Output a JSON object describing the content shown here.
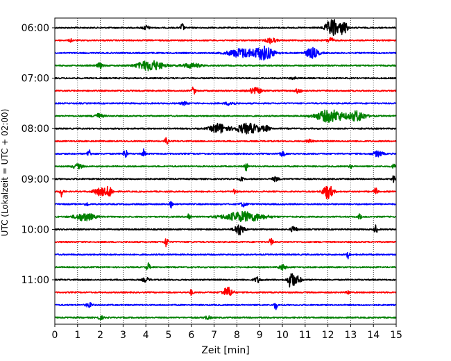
{
  "chart_data": {
    "type": "line",
    "title": "",
    "xlabel": "Zeit  [min]",
    "ylabel": "UTC (Lokalzeit = UTC + 02:00)",
    "xlim": [
      0,
      15
    ],
    "xticks": [
      0,
      1,
      2,
      3,
      4,
      5,
      6,
      7,
      8,
      9,
      10,
      11,
      12,
      13,
      14,
      15
    ],
    "xtick_labels": [
      "0",
      "1",
      "2",
      "3",
      "4",
      "5",
      "6",
      "7",
      "8",
      "9",
      "10",
      "11",
      "12",
      "13",
      "14",
      "15"
    ],
    "ytick_labels": [
      "06:00",
      "07:00",
      "08:00",
      "09:00",
      "10:00",
      "11:00"
    ],
    "grid": "vertical dotted",
    "trace_interval_min": 15,
    "series": [
      {
        "row": 0,
        "color": "#000000",
        "events": [
          [
            4.0,
            0.4,
            0.2
          ],
          [
            5.6,
            0.8,
            0.1
          ],
          [
            12.2,
            1.6,
            0.4
          ],
          [
            12.7,
            1.4,
            0.2
          ]
        ]
      },
      {
        "row": 1,
        "color": "#ff0000",
        "events": [
          [
            0.7,
            0.3,
            0.1
          ],
          [
            9.5,
            0.5,
            0.3
          ],
          [
            12.1,
            0.5,
            0.2
          ]
        ]
      },
      {
        "row": 2,
        "color": "#0000ff",
        "events": [
          [
            8.2,
            0.8,
            0.8
          ],
          [
            9.2,
            1.2,
            0.6
          ],
          [
            11.3,
            0.9,
            0.4
          ]
        ]
      },
      {
        "row": 3,
        "color": "#008000",
        "events": [
          [
            2.0,
            0.5,
            0.2
          ],
          [
            4.2,
            0.9,
            0.8
          ],
          [
            6.0,
            0.4,
            0.6
          ]
        ]
      },
      {
        "row": 4,
        "color": "#000000",
        "events": [
          [
            10.5,
            0.2,
            0.2
          ]
        ]
      },
      {
        "row": 5,
        "color": "#ff0000",
        "events": [
          [
            6.1,
            0.8,
            0.1
          ],
          [
            8.8,
            0.5,
            0.4
          ],
          [
            10.7,
            0.4,
            0.2
          ]
        ]
      },
      {
        "row": 6,
        "color": "#0000ff",
        "events": [
          [
            5.7,
            0.3,
            0.2
          ],
          [
            7.7,
            0.3,
            0.3
          ]
        ]
      },
      {
        "row": 7,
        "color": "#008000",
        "events": [
          [
            1.9,
            0.4,
            0.3
          ],
          [
            12.1,
            1.1,
            0.9
          ],
          [
            13.3,
            0.9,
            0.5
          ]
        ]
      },
      {
        "row": 8,
        "color": "#000000",
        "events": [
          [
            7.2,
            0.9,
            0.5
          ],
          [
            8.5,
            0.9,
            0.8
          ],
          [
            9.3,
            0.4,
            0.2
          ]
        ]
      },
      {
        "row": 9,
        "color": "#ff0000",
        "events": [
          [
            4.9,
            0.6,
            0.1
          ],
          [
            11.2,
            0.3,
            0.2
          ]
        ]
      },
      {
        "row": 10,
        "color": "#0000ff",
        "events": [
          [
            1.5,
            0.9,
            0.1
          ],
          [
            3.1,
            1.1,
            0.1
          ],
          [
            3.9,
            0.8,
            0.1
          ],
          [
            10.0,
            0.4,
            0.2
          ],
          [
            14.2,
            0.5,
            0.3
          ]
        ]
      },
      {
        "row": 11,
        "color": "#008000",
        "events": [
          [
            1.0,
            0.4,
            0.3
          ],
          [
            8.4,
            0.8,
            0.1
          ],
          [
            13.0,
            0.3,
            0.1
          ],
          [
            14.9,
            0.6,
            0.1
          ]
        ]
      },
      {
        "row": 12,
        "color": "#000000",
        "events": [
          [
            8.2,
            0.4,
            0.1
          ],
          [
            9.7,
            0.4,
            0.2
          ],
          [
            14.9,
            0.9,
            0.1
          ]
        ]
      },
      {
        "row": 13,
        "color": "#ff0000",
        "events": [
          [
            0.3,
            0.9,
            0.1
          ],
          [
            2.0,
            0.7,
            0.4
          ],
          [
            2.4,
            0.9,
            0.2
          ],
          [
            7.9,
            0.6,
            0.1
          ],
          [
            12.0,
            1.3,
            0.3
          ],
          [
            14.1,
            0.7,
            0.1
          ]
        ]
      },
      {
        "row": 14,
        "color": "#0000ff",
        "events": [
          [
            1.4,
            0.4,
            0.1
          ],
          [
            5.1,
            0.6,
            0.1
          ],
          [
            8.3,
            0.4,
            0.2
          ]
        ]
      },
      {
        "row": 15,
        "color": "#008000",
        "events": [
          [
            1.3,
            0.7,
            0.6
          ],
          [
            5.9,
            0.8,
            0.1
          ],
          [
            8.3,
            0.9,
            1.2
          ],
          [
            13.4,
            0.5,
            0.1
          ]
        ]
      },
      {
        "row": 16,
        "color": "#000000",
        "events": [
          [
            8.1,
            1.0,
            0.3
          ],
          [
            10.5,
            0.5,
            0.2
          ],
          [
            14.1,
            0.8,
            0.1
          ]
        ]
      },
      {
        "row": 17,
        "color": "#ff0000",
        "events": [
          [
            4.9,
            1.0,
            0.1
          ],
          [
            9.5,
            0.8,
            0.1
          ]
        ]
      },
      {
        "row": 18,
        "color": "#0000ff",
        "events": [
          [
            12.9,
            0.7,
            0.1
          ]
        ]
      },
      {
        "row": 19,
        "color": "#008000",
        "events": [
          [
            4.1,
            0.8,
            0.1
          ],
          [
            10.0,
            0.5,
            0.2
          ]
        ]
      },
      {
        "row": 20,
        "color": "#000000",
        "events": [
          [
            4.0,
            0.4,
            0.2
          ],
          [
            8.9,
            0.5,
            0.2
          ],
          [
            10.4,
            1.7,
            0.2
          ],
          [
            10.7,
            0.6,
            0.2
          ]
        ]
      },
      {
        "row": 21,
        "color": "#ff0000",
        "events": [
          [
            6.0,
            0.5,
            0.1
          ],
          [
            7.6,
            0.9,
            0.3
          ],
          [
            12.9,
            0.4,
            0.1
          ]
        ]
      },
      {
        "row": 22,
        "color": "#0000ff",
        "events": [
          [
            1.5,
            0.4,
            0.2
          ],
          [
            9.7,
            0.8,
            0.1
          ]
        ]
      },
      {
        "row": 23,
        "color": "#008000",
        "events": [
          [
            2.0,
            0.3,
            0.2
          ],
          [
            6.7,
            0.3,
            0.2
          ]
        ]
      }
    ]
  }
}
